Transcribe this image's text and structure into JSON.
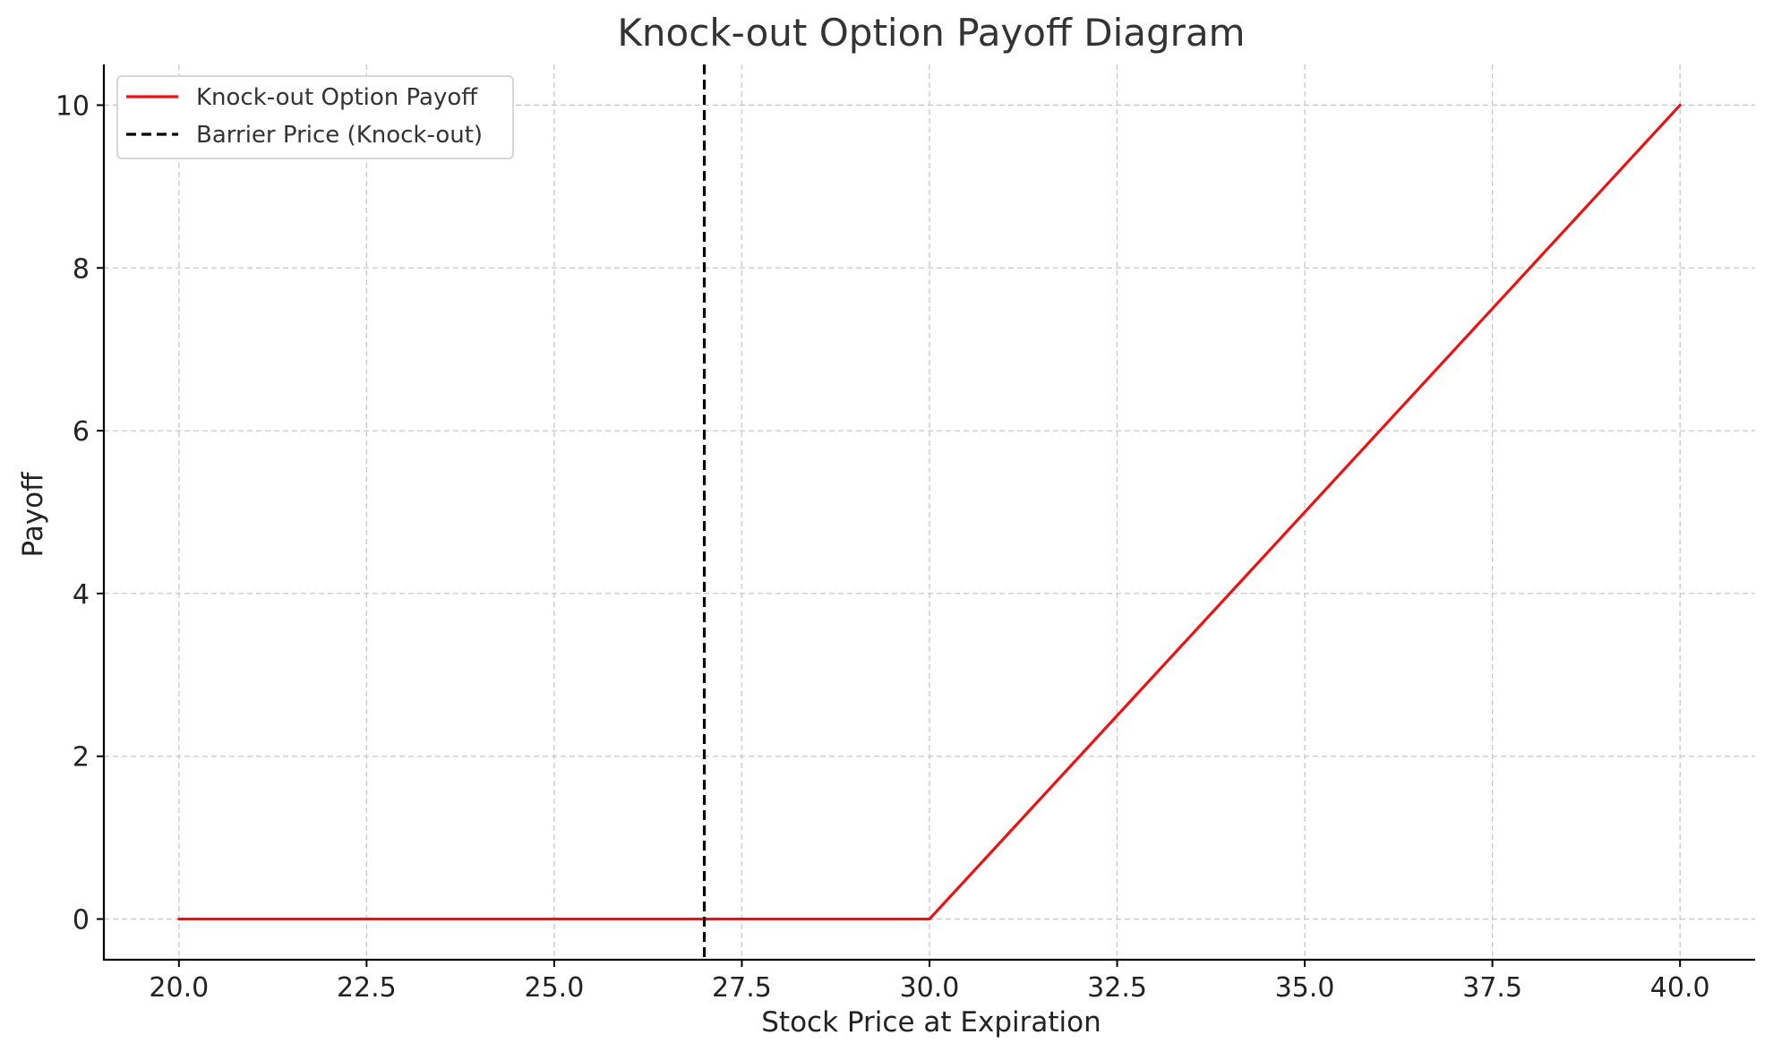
{
  "chart_data": {
    "type": "line",
    "title": "Knock-out Option Payoff Diagram",
    "xlabel": "Stock Price at Expiration",
    "ylabel": "Payoff",
    "xlim": [
      19,
      41
    ],
    "ylim": [
      -0.5,
      10.5
    ],
    "x_ticks": [
      20,
      22.5,
      25,
      27.5,
      30,
      32.5,
      35,
      37.5,
      40
    ],
    "x_tick_labels": [
      "20.0",
      "22.5",
      "25.0",
      "27.5",
      "30.0",
      "32.5",
      "35.0",
      "37.5",
      "40.0"
    ],
    "y_ticks": [
      0,
      2,
      4,
      6,
      8,
      10
    ],
    "y_tick_labels": [
      "0",
      "2",
      "4",
      "6",
      "8",
      "10"
    ],
    "grid": true,
    "legend_position": "top-left",
    "series": [
      {
        "name": "Knock-out Option Payoff",
        "color": "#ee1111",
        "style": "solid",
        "x": [
          20,
          30,
          40
        ],
        "y": [
          0,
          0,
          10
        ]
      }
    ],
    "vertical_lines": [
      {
        "name": "Barrier Price (Knock-out)",
        "color": "#000000",
        "style": "dashed",
        "x": 27
      }
    ]
  }
}
